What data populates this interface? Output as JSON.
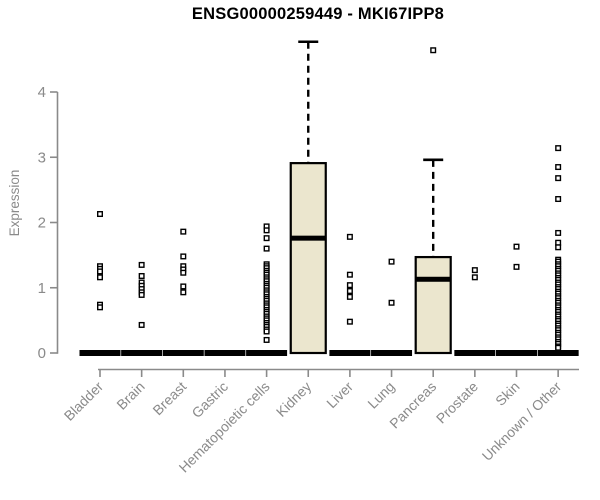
{
  "chart_data": {
    "type": "boxplot",
    "title": "ENSG00000259449 - MKI67IPP8",
    "ylabel": "Expression",
    "xlabel": "",
    "ylim": [
      0,
      4.8
    ],
    "yticks": [
      0,
      1,
      2,
      3,
      4
    ],
    "grid": false,
    "legend": "none",
    "title_color": "#000000",
    "axis_color": "#8a8a8a",
    "box_fill": "#ebe6ce",
    "box_stroke": "#000000",
    "categories": [
      "Bladder",
      "Brain",
      "Breast",
      "Gastric",
      "Hematopoietic cells",
      "Kidney",
      "Liver",
      "Lung",
      "Pancreas",
      "Prostate",
      "Skin",
      "Unknown / Other"
    ],
    "boxes": [
      {
        "category": "Bladder",
        "whisker_low": 0,
        "q1": 0,
        "median": 0,
        "q3": 0,
        "whisker_high": 0,
        "outliers": [
          2.13,
          1.33,
          1.29,
          1.25,
          1.16,
          0.74,
          0.7
        ]
      },
      {
        "category": "Brain",
        "whisker_low": 0,
        "q1": 0,
        "median": 0,
        "q3": 0,
        "whisker_high": 0,
        "outliers": [
          1.35,
          1.18,
          1.08,
          1.03,
          0.98,
          0.93,
          0.89,
          0.43
        ]
      },
      {
        "category": "Breast",
        "whisker_low": 0,
        "q1": 0,
        "median": 0,
        "q3": 0,
        "whisker_high": 0,
        "outliers": [
          1.86,
          1.48,
          1.33,
          1.28,
          1.23,
          1.02,
          0.93
        ]
      },
      {
        "category": "Gastric",
        "whisker_low": 0,
        "q1": 0,
        "median": 0,
        "q3": 0,
        "whisker_high": 0,
        "outliers": []
      },
      {
        "category": "Hematopoietic cells",
        "whisker_low": 0,
        "q1": 0,
        "median": 0,
        "q3": 0,
        "whisker_high": 0,
        "outliers": [
          1.94,
          1.88,
          1.76,
          1.6,
          1.36,
          1.33,
          1.3,
          1.26,
          1.23,
          1.2,
          1.16,
          1.13,
          1.1,
          1.06,
          1.03,
          1.0,
          0.96,
          0.93,
          0.9,
          0.86,
          0.83,
          0.8,
          0.76,
          0.73,
          0.7,
          0.66,
          0.63,
          0.6,
          0.56,
          0.53,
          0.5,
          0.46,
          0.43,
          0.4,
          0.36,
          0.33,
          0.2
        ]
      },
      {
        "category": "Kidney",
        "whisker_low": 0,
        "q1": 0,
        "median": 1.76,
        "q3": 2.91,
        "whisker_high": 4.77,
        "outliers": []
      },
      {
        "category": "Liver",
        "whisker_low": 0,
        "q1": 0,
        "median": 0,
        "q3": 0,
        "whisker_high": 0,
        "outliers": [
          1.78,
          1.2,
          1.04,
          0.95,
          0.86,
          0.48
        ]
      },
      {
        "category": "Lung",
        "whisker_low": 0,
        "q1": 0,
        "median": 0,
        "q3": 0,
        "whisker_high": 0,
        "outliers": [
          1.4,
          0.77
        ]
      },
      {
        "category": "Pancreas",
        "whisker_low": 0,
        "q1": 0,
        "median": 1.13,
        "q3": 1.47,
        "whisker_high": 2.96,
        "outliers": [
          4.64
        ]
      },
      {
        "category": "Prostate",
        "whisker_low": 0,
        "q1": 0,
        "median": 0,
        "q3": 0,
        "whisker_high": 0,
        "outliers": [
          1.27,
          1.16
        ]
      },
      {
        "category": "Skin",
        "whisker_low": 0,
        "q1": 0,
        "median": 0,
        "q3": 0,
        "whisker_high": 0,
        "outliers": [
          1.63,
          1.32
        ]
      },
      {
        "category": "Unknown / Other",
        "whisker_low": 0,
        "q1": 0,
        "median": 0,
        "q3": 0,
        "whisker_high": 0,
        "outliers": [
          3.14,
          2.85,
          2.68,
          2.36,
          1.84,
          1.69,
          1.62,
          1.43,
          1.4,
          1.36,
          1.33,
          1.29,
          1.26,
          1.22,
          1.19,
          1.15,
          1.12,
          1.08,
          1.05,
          1.01,
          0.98,
          0.94,
          0.91,
          0.87,
          0.84,
          0.8,
          0.77,
          0.73,
          0.7,
          0.66,
          0.63,
          0.59,
          0.56,
          0.52,
          0.49,
          0.45,
          0.42,
          0.38,
          0.35,
          0.31,
          0.28,
          0.24,
          0.21,
          0.17,
          0.14,
          0.1,
          0.08
        ]
      }
    ]
  }
}
